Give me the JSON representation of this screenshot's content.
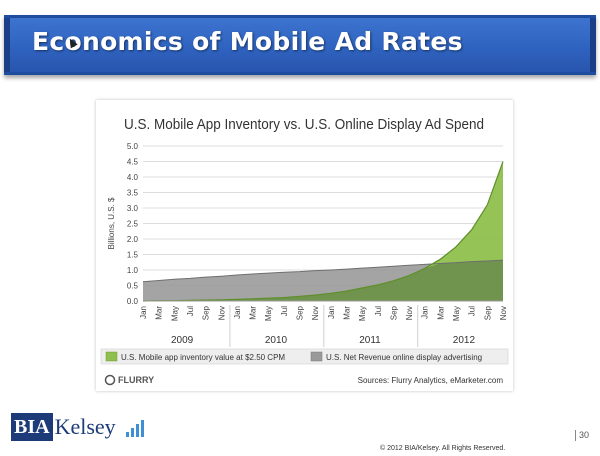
{
  "slide": {
    "title": "Economics of Mobile Ad Rates",
    "page_number": "30",
    "copyright": "© 2012 BIA/Kelsey. All Rights Reserved."
  },
  "logo": {
    "left_text": "BIA",
    "right_text": "Kelsey",
    "icon": "signal-bars-icon"
  },
  "colors": {
    "title_bar": "#2f63c0",
    "mobile_series": "#8fc04d",
    "online_series": "#9a9a9a",
    "overlap": "#6d8f4e"
  },
  "chart_data": {
    "type": "area",
    "title": "U.S. Mobile App Inventory vs. U.S. Online Display Ad Spend",
    "ylabel": "Billions, U.S. $",
    "xlabel": "",
    "ylim": [
      0,
      5
    ],
    "yticks": [
      "0.0",
      "0.5",
      "1.0",
      "1.5",
      "2.0",
      "2.5",
      "3.0",
      "3.5",
      "4.0",
      "4.5",
      "5.0"
    ],
    "months": [
      "Jan",
      "Mar",
      "May",
      "Jul",
      "Sep",
      "Nov",
      "Jan",
      "Mar",
      "May",
      "Jul",
      "Sep",
      "Nov",
      "Jan",
      "Mar",
      "May",
      "Jul",
      "Sep",
      "Nov",
      "Jan",
      "Mar",
      "May",
      "Jul",
      "Sep",
      "Nov"
    ],
    "years": [
      "2009",
      "2010",
      "2011",
      "2012"
    ],
    "series": [
      {
        "name": "U.S. Mobile app inventory value at $2.50 CPM",
        "values": [
          0.0,
          0.01,
          0.01,
          0.02,
          0.03,
          0.04,
          0.05,
          0.07,
          0.09,
          0.11,
          0.15,
          0.19,
          0.25,
          0.32,
          0.42,
          0.52,
          0.65,
          0.82,
          1.05,
          1.35,
          1.75,
          2.3,
          3.1,
          4.5
        ]
      },
      {
        "name": "U.S. Net Revenue online display advertising",
        "values": [
          0.62,
          0.66,
          0.7,
          0.73,
          0.77,
          0.8,
          0.84,
          0.87,
          0.9,
          0.93,
          0.95,
          0.98,
          1.0,
          1.03,
          1.06,
          1.09,
          1.12,
          1.15,
          1.18,
          1.21,
          1.24,
          1.27,
          1.29,
          1.32
        ]
      }
    ],
    "source": "Sources: Flurry Analytics, eMarketer.com",
    "brand": "FLURRY",
    "legend_position": "bottom"
  }
}
